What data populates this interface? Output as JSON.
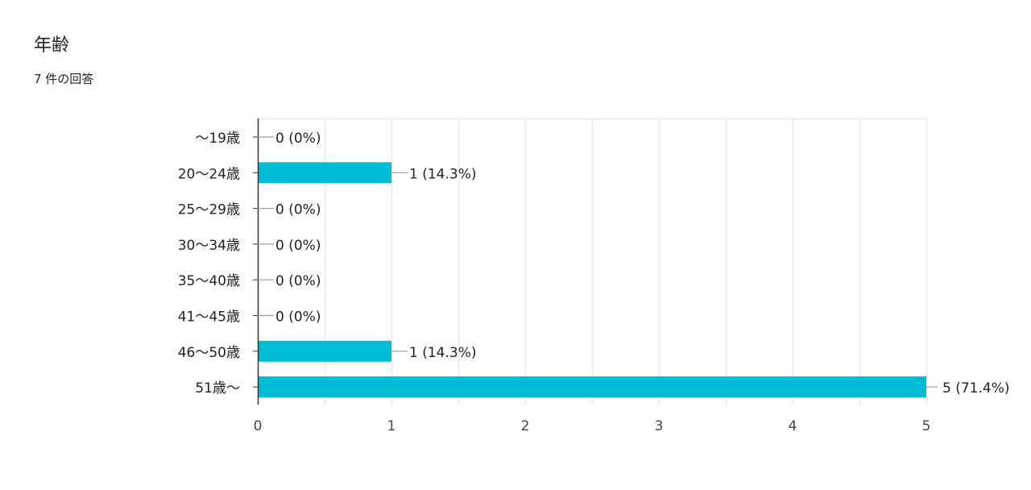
{
  "question": {
    "title": "年齢",
    "response_count": "7 件の回答"
  },
  "colors": {
    "bar": "#00bcd4",
    "axis": "#333333",
    "grid": "#e8e8e8",
    "leader": "#9e9e9e",
    "text": "#222222",
    "tick_text": "#444444"
  },
  "chart_data": {
    "type": "bar",
    "orientation": "horizontal",
    "categories": [
      "〜19歳",
      "20〜24歳",
      "25〜29歳",
      "30〜34歳",
      "35〜40歳",
      "41〜45歳",
      "46〜50歳",
      "51歳〜"
    ],
    "values": [
      0,
      1,
      0,
      0,
      0,
      0,
      1,
      5
    ],
    "data_labels": [
      "0 (0%)",
      "1 (14.3%)",
      "0 (0%)",
      "0 (0%)",
      "0 (0%)",
      "0 (0%)",
      "1 (14.3%)",
      "5 (71.4%)"
    ],
    "xlim": [
      0,
      5
    ],
    "x_ticks": [
      "0",
      "1",
      "2",
      "3",
      "4",
      "5"
    ],
    "grid": true,
    "legend": "none"
  }
}
